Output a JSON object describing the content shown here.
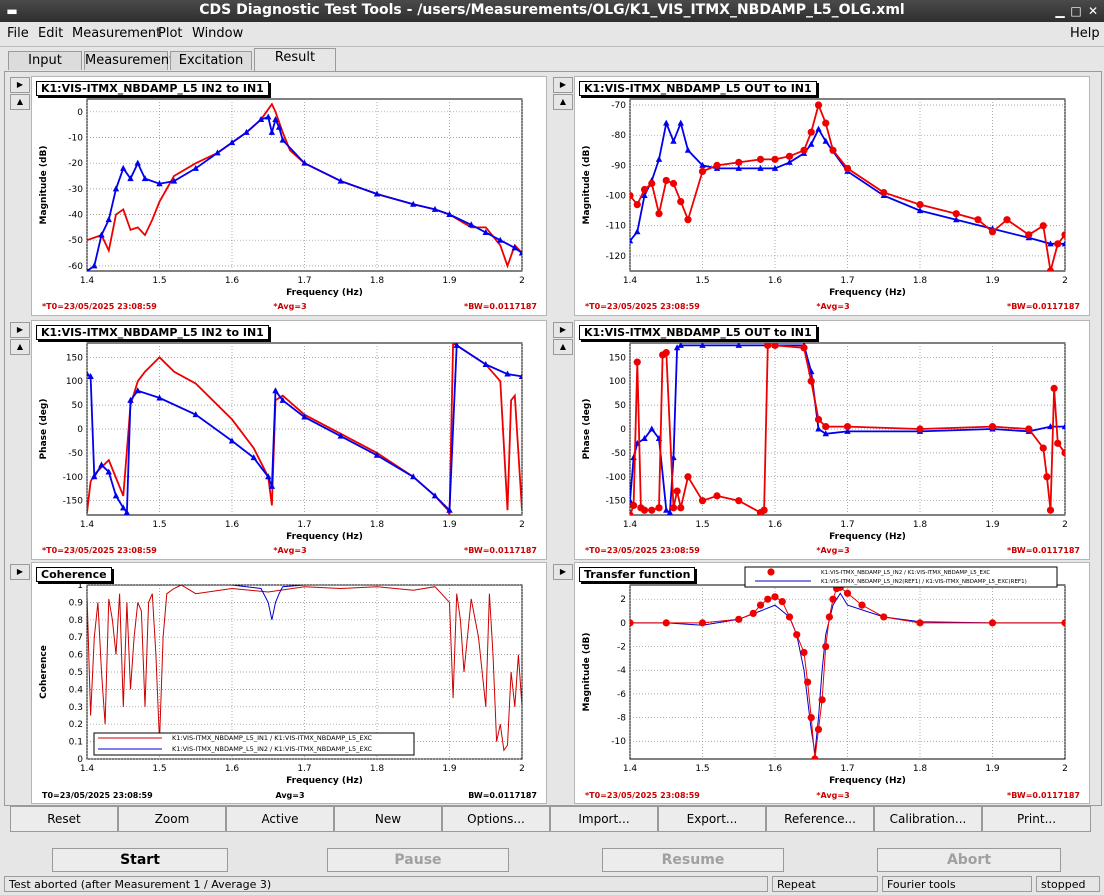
{
  "window": {
    "title": "CDS Diagnostic Test Tools - /users/Measurements/OLG/K1_VIS_ITMX_NBDAMP_L5_OLG.xml",
    "menu_icon": "window-menu-icon"
  },
  "menu": {
    "file": "File",
    "edit": "Edit",
    "measurement": "Measurement",
    "plot": "Plot",
    "window": "Window",
    "help": "Help"
  },
  "tabs": [
    "Input",
    "Measurement",
    "Excitation",
    "Result"
  ],
  "info": {
    "t0": "*T0=23/05/2025 23:08:59",
    "avg": "*Avg=3",
    "bw": "*BW=0.0117187",
    "t0_plain": "T0=23/05/2025 23:08:59",
    "avg_plain": "Avg=3",
    "bw_plain": "BW=0.0117187"
  },
  "panels": [
    {
      "title": "K1:VIS-ITMX_NBDAMP_L5 IN2 to IN1",
      "xlabel": "Frequency (Hz)",
      "ylabel": "Magnitude (dB)"
    },
    {
      "title": "K1:VIS-ITMX_NBDAMP_L5 OUT to IN1",
      "xlabel": "Frequency (Hz)",
      "ylabel": "Magnitude (dB)"
    },
    {
      "title": "K1:VIS-ITMX_NBDAMP_L5 IN2 to IN1",
      "xlabel": "Frequency (Hz)",
      "ylabel": "Phase (deg)"
    },
    {
      "title": "K1:VIS-ITMX_NBDAMP_L5 OUT to IN1",
      "xlabel": "Frequency (Hz)",
      "ylabel": "Phase (deg)"
    },
    {
      "title": "Coherence",
      "xlabel": "Frequency (Hz)",
      "ylabel": "Coherence",
      "legend": [
        "K1:VIS-ITMX_NBDAMP_L5_IN1 / K1:VIS-ITMX_NBDAMP_L5_EXC",
        "K1:VIS-ITMX_NBDAMP_L5_IN2 / K1:VIS-ITMX_NBDAMP_L5_EXC"
      ]
    },
    {
      "title": "Transfer function",
      "xlabel": "Frequency (Hz)",
      "ylabel": "Magnitude (dB)",
      "legend": [
        "K1:VIS-ITMX_NBDAMP_L5_IN2 / K1:VIS-ITMX_NBDAMP_L5_EXC",
        "K1:VIS-ITMX_NBDAMP_L5_IN2(REF1) / K1:VIS-ITMX_NBDAMP_L5_EXC(REF1)"
      ]
    }
  ],
  "chart_data": [
    {
      "type": "line",
      "xlim": [
        1.4,
        2.0
      ],
      "ylim": [
        -62,
        5
      ],
      "xticks": [
        "1.4",
        "1.5",
        "1.6",
        "1.7",
        "1.8",
        "1.9",
        "2"
      ],
      "yticks": [
        "0",
        "-10",
        "-20",
        "-30",
        "-40",
        "-50",
        "-60"
      ],
      "series": [
        {
          "color": "#ee0000",
          "marker": "none",
          "x": [
            1.4,
            1.42,
            1.43,
            1.44,
            1.45,
            1.46,
            1.47,
            1.48,
            1.49,
            1.5,
            1.52,
            1.55,
            1.58,
            1.6,
            1.62,
            1.64,
            1.65,
            1.655,
            1.66,
            1.67,
            1.68,
            1.7,
            1.75,
            1.8,
            1.85,
            1.88,
            1.9,
            1.93,
            1.95,
            1.97,
            1.98,
            1.99,
            2.0
          ],
          "y": [
            -50,
            -48,
            -54,
            -40,
            -38,
            -46,
            -45,
            -48,
            -42,
            -35,
            -25,
            -20,
            -16,
            -12,
            -8,
            -3,
            1,
            3,
            0,
            -8,
            -15,
            -20,
            -27,
            -32,
            -36,
            -38,
            -40,
            -45,
            -45,
            -52,
            -60,
            -52,
            -55
          ]
        },
        {
          "color": "#0000ee",
          "marker": "triangle",
          "x": [
            1.4,
            1.41,
            1.42,
            1.43,
            1.44,
            1.45,
            1.46,
            1.47,
            1.48,
            1.5,
            1.52,
            1.55,
            1.58,
            1.6,
            1.62,
            1.64,
            1.65,
            1.655,
            1.66,
            1.665,
            1.67,
            1.7,
            1.75,
            1.8,
            1.85,
            1.88,
            1.9,
            1.93,
            1.95,
            1.97,
            1.99,
            2.0
          ],
          "y": [
            -62,
            -60,
            -48,
            -42,
            -30,
            -22,
            -26,
            -20,
            -26,
            -28,
            -27,
            -22,
            -16,
            -12,
            -8,
            -3,
            -2,
            -8,
            -3,
            -6,
            -11,
            -20,
            -27,
            -32,
            -36,
            -38,
            -40,
            -44,
            -47,
            -50,
            -53,
            -55
          ]
        }
      ]
    },
    {
      "type": "line",
      "xlim": [
        1.4,
        2.0
      ],
      "ylim": [
        -125,
        -68
      ],
      "xticks": [
        "1.4",
        "1.5",
        "1.6",
        "1.7",
        "1.8",
        "1.9",
        "2"
      ],
      "yticks": [
        "-70",
        "-80",
        "-90",
        "-100",
        "-110",
        "-120"
      ],
      "series": [
        {
          "color": "#0000ee",
          "marker": "triangle",
          "x": [
            1.4,
            1.41,
            1.42,
            1.43,
            1.44,
            1.45,
            1.46,
            1.47,
            1.48,
            1.5,
            1.52,
            1.55,
            1.58,
            1.6,
            1.62,
            1.64,
            1.65,
            1.66,
            1.67,
            1.7,
            1.75,
            1.8,
            1.85,
            1.9,
            1.95,
            1.98,
            2.0
          ],
          "y": [
            -115,
            -112,
            -100,
            -95,
            -88,
            -76,
            -82,
            -76,
            -85,
            -90,
            -91,
            -91,
            -91,
            -91,
            -89,
            -86,
            -83,
            -78,
            -82,
            -92,
            -100,
            -105,
            -108,
            -111,
            -114,
            -116,
            -116
          ]
        },
        {
          "color": "#ee0000",
          "marker": "circle",
          "x": [
            1.4,
            1.41,
            1.42,
            1.43,
            1.44,
            1.45,
            1.46,
            1.47,
            1.48,
            1.5,
            1.52,
            1.55,
            1.58,
            1.6,
            1.62,
            1.64,
            1.65,
            1.66,
            1.67,
            1.68,
            1.7,
            1.75,
            1.8,
            1.85,
            1.88,
            1.9,
            1.92,
            1.95,
            1.97,
            1.98,
            1.99,
            2.0
          ],
          "y": [
            -100,
            -103,
            -98,
            -96,
            -106,
            -95,
            -96,
            -102,
            -108,
            -92,
            -90,
            -89,
            -88,
            -88,
            -87,
            -85,
            -79,
            -70,
            -76,
            -85,
            -91,
            -99,
            -103,
            -106,
            -108,
            -112,
            -108,
            -113,
            -110,
            -125,
            -116,
            -113
          ]
        }
      ]
    },
    {
      "type": "line",
      "xlim": [
        1.4,
        2.0
      ],
      "ylim": [
        -180,
        180
      ],
      "xticks": [
        "1.4",
        "1.5",
        "1.6",
        "1.7",
        "1.8",
        "1.9",
        "2"
      ],
      "yticks": [
        "150",
        "100",
        "50",
        "0",
        "-50",
        "-100",
        "-150"
      ],
      "series": [
        {
          "color": "#ee0000",
          "marker": "none",
          "x": [
            1.4,
            1.405,
            1.41,
            1.43,
            1.45,
            1.46,
            1.47,
            1.48,
            1.49,
            1.5,
            1.52,
            1.55,
            1.6,
            1.63,
            1.65,
            1.655,
            1.66,
            1.67,
            1.7,
            1.75,
            1.8,
            1.85,
            1.88,
            1.898,
            1.9,
            1.905,
            1.91,
            1.95,
            1.97,
            1.98,
            1.985,
            1.99,
            2.0
          ],
          "y": [
            -175,
            -110,
            -95,
            -65,
            -140,
            50,
            100,
            120,
            135,
            150,
            120,
            95,
            20,
            -40,
            -100,
            -160,
            60,
            70,
            30,
            -10,
            -50,
            -100,
            -140,
            -170,
            -180,
            180,
            175,
            135,
            100,
            -170,
            60,
            70,
            -170
          ]
        },
        {
          "color": "#0000ee",
          "marker": "triangle",
          "x": [
            1.4,
            1.405,
            1.41,
            1.42,
            1.43,
            1.44,
            1.45,
            1.455,
            1.46,
            1.47,
            1.5,
            1.55,
            1.6,
            1.63,
            1.65,
            1.655,
            1.66,
            1.67,
            1.7,
            1.75,
            1.8,
            1.85,
            1.88,
            1.9,
            1.91,
            1.95,
            1.98,
            2.0
          ],
          "y": [
            115,
            110,
            -100,
            -75,
            -90,
            -140,
            -165,
            -175,
            60,
            80,
            65,
            30,
            -25,
            -60,
            -100,
            -120,
            80,
            60,
            25,
            -15,
            -55,
            -100,
            -140,
            -170,
            175,
            135,
            115,
            110
          ]
        }
      ]
    },
    {
      "type": "line",
      "xlim": [
        1.4,
        2.0
      ],
      "ylim": [
        -180,
        180
      ],
      "xticks": [
        "1.4",
        "1.5",
        "1.6",
        "1.7",
        "1.8",
        "1.9",
        "2"
      ],
      "yticks": [
        "150",
        "100",
        "50",
        "0",
        "-50",
        "-100",
        "-150"
      ],
      "series": [
        {
          "color": "#0000ee",
          "marker": "triangle",
          "x": [
            1.4,
            1.405,
            1.41,
            1.42,
            1.43,
            1.44,
            1.45,
            1.455,
            1.46,
            1.465,
            1.47,
            1.5,
            1.55,
            1.6,
            1.64,
            1.65,
            1.66,
            1.67,
            1.7,
            1.8,
            1.9,
            1.95,
            1.98,
            2.0
          ],
          "y": [
            -150,
            -60,
            -30,
            -20,
            0,
            -20,
            -170,
            -175,
            -60,
            170,
            175,
            175,
            175,
            175,
            175,
            120,
            0,
            -10,
            -5,
            -5,
            0,
            -5,
            5,
            5
          ]
        },
        {
          "color": "#ee0000",
          "marker": "circle",
          "x": [
            1.4,
            1.405,
            1.41,
            1.415,
            1.42,
            1.43,
            1.44,
            1.445,
            1.45,
            1.46,
            1.465,
            1.47,
            1.48,
            1.5,
            1.52,
            1.55,
            1.58,
            1.585,
            1.59,
            1.6,
            1.64,
            1.65,
            1.66,
            1.67,
            1.7,
            1.8,
            1.9,
            1.95,
            1.97,
            1.975,
            1.98,
            1.985,
            1.99,
            2.0
          ],
          "y": [
            -180,
            -160,
            140,
            -165,
            -170,
            -170,
            -165,
            155,
            160,
            -165,
            -130,
            -165,
            -100,
            -150,
            -140,
            -150,
            -175,
            -170,
            175,
            175,
            170,
            100,
            20,
            5,
            5,
            0,
            5,
            0,
            -40,
            -100,
            -170,
            85,
            -30,
            -50
          ]
        }
      ]
    },
    {
      "type": "line",
      "xlim": [
        1.4,
        2.0
      ],
      "ylim": [
        0,
        1.0
      ],
      "xticks": [
        "1.4",
        "1.5",
        "1.6",
        "1.7",
        "1.8",
        "1.9",
        "2"
      ],
      "yticks": [
        "0",
        "0.1",
        "0.2",
        "0.3",
        "0.4",
        "0.5",
        "0.6",
        "0.7",
        "0.8",
        "0.9",
        "1"
      ],
      "series": [
        {
          "name": "K1:VIS-ITMX_NBDAMP_L5_IN1 / K1:VIS-ITMX_NBDAMP_L5_EXC",
          "color": "#cc0000",
          "marker": "none",
          "x": [
            1.4,
            1.405,
            1.41,
            1.415,
            1.42,
            1.425,
            1.43,
            1.435,
            1.44,
            1.445,
            1.45,
            1.455,
            1.46,
            1.465,
            1.47,
            1.475,
            1.48,
            1.485,
            1.49,
            1.495,
            1.5,
            1.505,
            1.51,
            1.52,
            1.53,
            1.55,
            1.6,
            1.65,
            1.7,
            1.75,
            1.8,
            1.85,
            1.88,
            1.9,
            1.905,
            1.91,
            1.915,
            1.92,
            1.93,
            1.94,
            1.95,
            1.955,
            1.96,
            1.965,
            1.97,
            1.975,
            1.98,
            1.985,
            1.99,
            1.995,
            2.0
          ],
          "y": [
            0.95,
            0.25,
            0.7,
            0.9,
            0.5,
            0.2,
            0.92,
            0.8,
            0.6,
            0.95,
            0.3,
            0.9,
            0.4,
            0.7,
            0.9,
            0.85,
            0.3,
            0.9,
            0.95,
            0.6,
            0.1,
            0.7,
            0.95,
            0.98,
            1.0,
            0.95,
            0.98,
            0.96,
            0.99,
            0.98,
            0.99,
            0.97,
            0.99,
            0.9,
            0.35,
            0.95,
            0.8,
            0.5,
            0.92,
            0.7,
            0.3,
            0.95,
            0.6,
            0.1,
            0.2,
            0.05,
            0.08,
            0.5,
            0.3,
            0.6,
            0.3
          ]
        },
        {
          "name": "K1:VIS-ITMX_NBDAMP_L5_IN2 / K1:VIS-ITMX_NBDAMP_L5_EXC",
          "color": "#0000cc",
          "marker": "none",
          "x": [
            1.4,
            1.5,
            1.6,
            1.64,
            1.65,
            1.655,
            1.66,
            1.665,
            1.67,
            1.7,
            1.8,
            1.9,
            2.0
          ],
          "y": [
            1.0,
            1.0,
            1.0,
            0.98,
            0.9,
            0.8,
            0.9,
            0.95,
            0.99,
            1.0,
            1.0,
            1.0,
            1.0
          ]
        }
      ]
    },
    {
      "type": "line",
      "xlim": [
        1.4,
        2.0
      ],
      "ylim": [
        -11.5,
        3.2
      ],
      "xticks": [
        "1.4",
        "1.5",
        "1.6",
        "1.7",
        "1.8",
        "1.9",
        "2"
      ],
      "yticks": [
        "2",
        "0",
        "-2",
        "-4",
        "-6",
        "-8",
        "-10"
      ],
      "series": [
        {
          "name": "K1:VIS-ITMX_NBDAMP_L5_IN2(REF1) / K1:VIS-ITMX_NBDAMP_L5_EXC(REF1)",
          "color": "#0000cc",
          "marker": "none",
          "x": [
            1.4,
            1.45,
            1.5,
            1.55,
            1.58,
            1.6,
            1.62,
            1.63,
            1.64,
            1.65,
            1.655,
            1.66,
            1.665,
            1.67,
            1.68,
            1.69,
            1.7,
            1.75,
            1.8,
            1.9,
            2.0
          ],
          "y": [
            0,
            0,
            -0.2,
            0.3,
            1.0,
            1.5,
            0.5,
            -1,
            -4,
            -9,
            -11.0,
            -8,
            -4,
            -1,
            1.5,
            2.5,
            1.5,
            0.5,
            0.1,
            0,
            0
          ]
        },
        {
          "name": "K1:VIS-ITMX_NBDAMP_L5_IN2 / K1:VIS-ITMX_NBDAMP_L5_EXC",
          "color": "#ee0000",
          "marker": "circle",
          "x": [
            1.4,
            1.45,
            1.5,
            1.55,
            1.57,
            1.58,
            1.59,
            1.6,
            1.61,
            1.62,
            1.63,
            1.64,
            1.645,
            1.65,
            1.655,
            1.66,
            1.665,
            1.67,
            1.675,
            1.68,
            1.685,
            1.69,
            1.7,
            1.72,
            1.75,
            1.8,
            1.9,
            2.0
          ],
          "y": [
            0,
            0,
            0,
            0.3,
            0.8,
            1.5,
            2,
            2.2,
            1.8,
            0.5,
            -1,
            -2.5,
            -5,
            -8,
            -11.5,
            -9,
            -6.5,
            -2,
            0.5,
            2.0,
            2.9,
            3.0,
            2.5,
            1.5,
            0.5,
            0,
            0,
            0
          ]
        }
      ]
    }
  ],
  "buttons": [
    "Reset",
    "Zoom",
    "Active",
    "New",
    "Options...",
    "Import...",
    "Export...",
    "Reference...",
    "Calibration...",
    "Print..."
  ],
  "controls": {
    "start": "Start",
    "pause": "Pause",
    "resume": "Resume",
    "abort": "Abort"
  },
  "status": {
    "message": "Test aborted (after Measurement 1 / Average 3)",
    "repeat": "Repeat",
    "mode": "Fourier tools",
    "state": "stopped"
  }
}
